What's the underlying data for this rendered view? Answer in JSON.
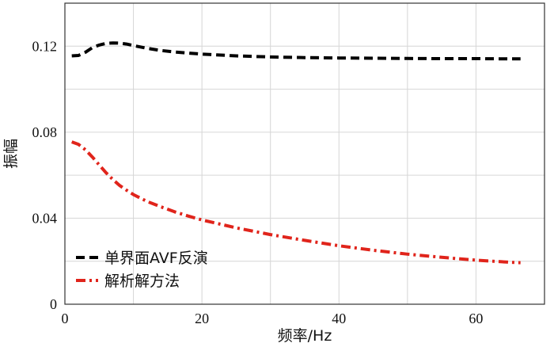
{
  "chart_data": {
    "type": "line",
    "title": "",
    "xlabel": "频率/Hz",
    "ylabel": "振幅",
    "xlim": [
      0,
      70
    ],
    "ylim": [
      0,
      0.14
    ],
    "xticks": [
      0,
      20,
      40,
      60
    ],
    "xtick_labels": [
      "0",
      "20",
      "40",
      "60"
    ],
    "yticks": [
      0,
      0.04,
      0.08,
      0.12
    ],
    "ytick_labels": [
      "0",
      "0.04",
      "0.08",
      "0.12"
    ],
    "grid": true,
    "legend_position": "bottom-left",
    "series": [
      {
        "name": "单界面AVF反演",
        "color": "#000000",
        "dash": "dash",
        "x": [
          1,
          2,
          3,
          4,
          5,
          6,
          7,
          8,
          9,
          10,
          12,
          14,
          16,
          18,
          20,
          25,
          30,
          35,
          40,
          45,
          50,
          55,
          60,
          65,
          66.5
        ],
        "y": [
          0.1155,
          0.1157,
          0.1172,
          0.1193,
          0.1205,
          0.1213,
          0.1215,
          0.1214,
          0.121,
          0.1203,
          0.119,
          0.118,
          0.1173,
          0.1168,
          0.1163,
          0.1155,
          0.115,
          0.1147,
          0.1145,
          0.1144,
          0.1143,
          0.1142,
          0.1142,
          0.1141,
          0.1141
        ]
      },
      {
        "name": "解析解方法",
        "color": "#e0241b",
        "dash": "dashdot",
        "x": [
          1,
          2,
          3,
          4,
          5,
          6,
          7,
          8,
          9,
          10,
          12,
          14,
          16,
          18,
          20,
          25,
          30,
          35,
          40,
          45,
          50,
          55,
          60,
          65,
          66.5
        ],
        "y": [
          0.0755,
          0.0743,
          0.0718,
          0.0685,
          0.0648,
          0.0612,
          0.058,
          0.0552,
          0.053,
          0.051,
          0.0478,
          0.0453,
          0.043,
          0.041,
          0.0392,
          0.0355,
          0.0324,
          0.0297,
          0.0272,
          0.0251,
          0.0233,
          0.0218,
          0.0205,
          0.0195,
          0.0193
        ]
      }
    ]
  }
}
